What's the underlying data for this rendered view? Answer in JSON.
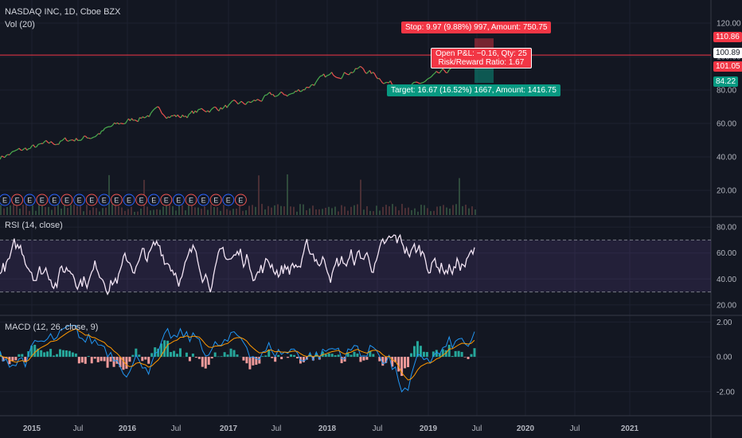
{
  "header": {
    "symbol": "NASDAQ INC, 1D, Cboe BZX",
    "volume": "Vol (20)",
    "rsi": "RSI (14, close)",
    "macd": "MACD (12, 26, close, 9)"
  },
  "earnings_marker": "E",
  "boxes": {
    "stop": "Stop: 9.97 (9.88%) 997, Amount: 750.75",
    "pnl_line1": "Open P&L: −0.16, Qty: 25",
    "pnl_line2": "Risk/Reward Ratio: 1.67",
    "target": "Target: 16.67 (16.52%) 1667, Amount: 1416.75"
  },
  "price_labels": {
    "stop": "110.86",
    "current": "100.89",
    "entry": "101.05",
    "target": "84.22"
  },
  "colors": {
    "background": "#131722",
    "grid": "#1e2230",
    "up": "#4caf50",
    "down": "#ef5350",
    "stop": "#f23645",
    "target": "#089981",
    "rsi_line": "#f3e5f5",
    "rsi_band": "#7e57c2",
    "macd_line": "#2196f3",
    "signal_line": "#ff9800",
    "hist_up": "#26a69a",
    "hist_down": "#ef9a9a"
  },
  "chart_data": {
    "type": "line",
    "title": "NASDAQ INC, 1D, Cboe BZX",
    "x_axis": {
      "ticks": [
        "2015",
        "Jul",
        "2016",
        "Jul",
        "2017",
        "Jul",
        "2018",
        "Jul",
        "2019",
        "Jul",
        "2020",
        "Jul",
        "2021"
      ]
    },
    "price_panel": {
      "ylim": [
        10,
        130
      ],
      "yticks": [
        "120.00",
        "100.00",
        "80.00",
        "60.00",
        "40.00",
        "20.00"
      ],
      "series": [
        {
          "x": [
            "2014-11",
            "2015-01",
            "2015-04",
            "2015-07",
            "2015-10",
            "2016-01",
            "2016-04",
            "2016-07",
            "2016-10",
            "2017-01",
            "2017-04",
            "2017-07",
            "2017-10",
            "2018-01",
            "2018-03",
            "2018-06",
            "2018-08",
            "2018-10",
            "2018-12",
            "2019-02",
            "2019-04",
            "2019-06"
          ],
          "values": [
            40,
            44,
            47,
            50,
            52,
            58,
            63,
            67,
            64,
            68,
            70,
            72,
            76,
            78,
            85,
            90,
            93,
            86,
            80,
            86,
            92,
            96
          ]
        }
      ],
      "trade": {
        "stop": 110.86,
        "entry": 101.05,
        "current": 100.89,
        "target": 84.22
      },
      "earnings_count": 20
    },
    "rsi_panel": {
      "ylim": [
        15,
        85
      ],
      "yticks": [
        "80.00",
        "60.00",
        "40.00",
        "20.00"
      ],
      "upper_band": 70,
      "lower_band": 30
    },
    "macd_panel": {
      "ylim": [
        -3,
        2
      ],
      "yticks": [
        "2.00",
        "0.00",
        "-2.00"
      ]
    }
  }
}
